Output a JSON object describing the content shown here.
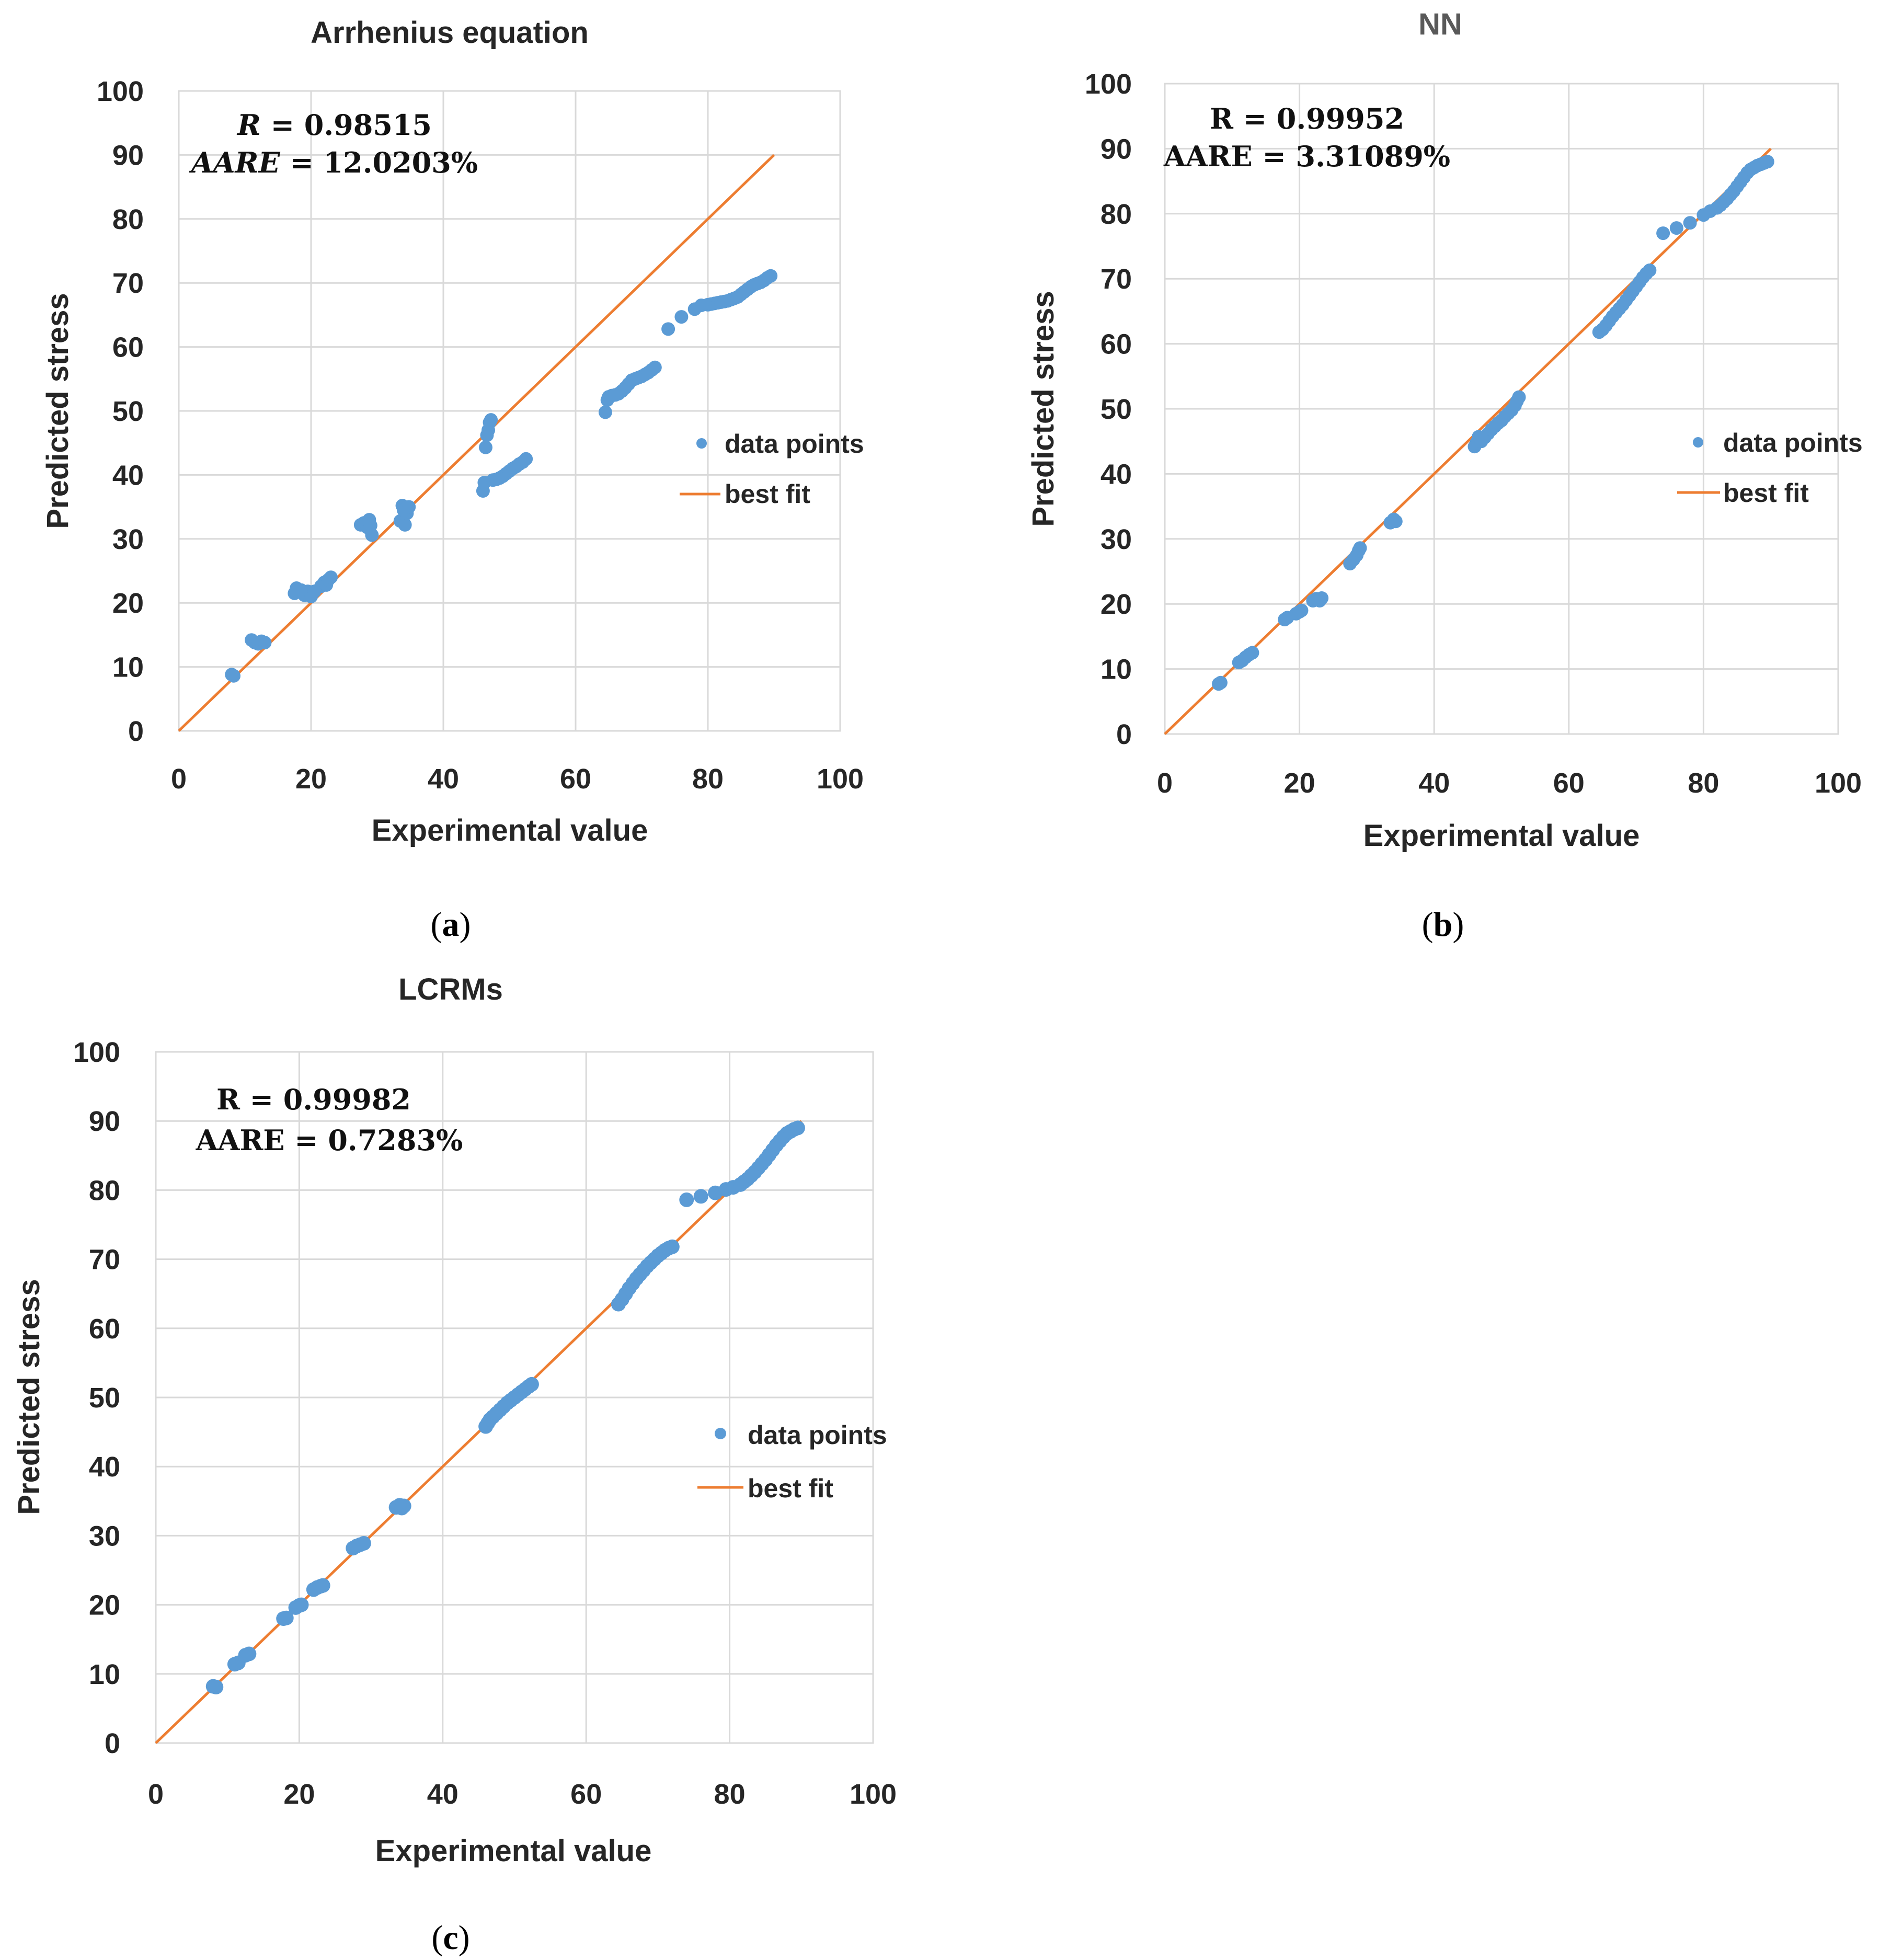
{
  "colors": {
    "points": "#5b9bd5",
    "fit": "#ed7d31"
  },
  "chart_data": [
    {
      "id": "a",
      "type": "scatter",
      "title": "Arrhenius  equation",
      "xlabel": "Experimental value",
      "ylabel": "Predicted stress",
      "xlim": [
        0,
        100
      ],
      "ylim": [
        0,
        100
      ],
      "xticks": [
        "0",
        "20",
        "40",
        "60",
        "80",
        "100"
      ],
      "yticks": [
        "0",
        "10",
        "20",
        "30",
        "40",
        "50",
        "60",
        "70",
        "80",
        "90",
        "100"
      ],
      "grid": true,
      "annotation": {
        "r_label": "R",
        "r_value": "= 0.98515",
        "aare_label": "AARE",
        "aare_value": "= 12.0203%"
      },
      "legend": {
        "points": "data points",
        "fit": "best fit"
      },
      "panel_open": "(",
      "panel_letter": "a",
      "panel_close": ")",
      "best_fit": {
        "x": [
          0,
          90
        ],
        "y": [
          0,
          90
        ]
      },
      "series": [
        {
          "name": "data points",
          "points": [
            [
              8,
              8.8
            ],
            [
              8.3,
              8.6
            ],
            [
              11,
              14.2
            ],
            [
              11.5,
              13.8
            ],
            [
              12,
              13.6
            ],
            [
              12.5,
              14
            ],
            [
              13,
              13.8
            ],
            [
              17.5,
              21.5
            ],
            [
              17.8,
              22.3
            ],
            [
              18,
              21.8
            ],
            [
              18.5,
              22
            ],
            [
              19,
              21.2
            ],
            [
              19.5,
              21.8
            ],
            [
              20,
              21
            ],
            [
              20.5,
              21.8
            ],
            [
              21.5,
              22.6
            ],
            [
              22,
              23.2
            ],
            [
              22.3,
              22.8
            ],
            [
              22.6,
              23.6
            ],
            [
              23,
              24
            ],
            [
              27.5,
              32.2
            ],
            [
              28,
              32.5
            ],
            [
              28.5,
              31.8
            ],
            [
              28.8,
              33
            ],
            [
              29,
              32.1
            ],
            [
              29.2,
              30.6
            ],
            [
              33.5,
              32.8
            ],
            [
              33.8,
              35.2
            ],
            [
              34,
              34.5
            ],
            [
              34.2,
              32.2
            ],
            [
              34.5,
              34
            ],
            [
              34.8,
              35
            ],
            [
              46,
              37.5
            ],
            [
              46.2,
              38.8
            ],
            [
              46.4,
              44.3
            ],
            [
              46.6,
              46.2
            ],
            [
              46.8,
              47
            ],
            [
              47,
              48.2
            ],
            [
              47.2,
              48.6
            ],
            [
              47.5,
              39.2
            ],
            [
              48,
              39.3
            ],
            [
              48.5,
              39.5
            ],
            [
              49,
              39.8
            ],
            [
              49.5,
              40.2
            ],
            [
              50,
              40.6
            ],
            [
              50.5,
              41
            ],
            [
              51,
              41.3
            ],
            [
              51.5,
              41.7
            ],
            [
              52,
              42
            ],
            [
              52.5,
              42.5
            ],
            [
              64.5,
              49.8
            ],
            [
              64.8,
              51.7
            ],
            [
              65,
              52.2
            ],
            [
              65.5,
              52.4
            ],
            [
              66,
              52.5
            ],
            [
              66.5,
              52.7
            ],
            [
              67,
              53.1
            ],
            [
              67.5,
              53.6
            ],
            [
              68,
              54.2
            ],
            [
              68.5,
              54.8
            ],
            [
              69,
              55
            ],
            [
              69.5,
              55.2
            ],
            [
              70,
              55.4
            ],
            [
              70.5,
              55.7
            ],
            [
              71,
              56
            ],
            [
              71.5,
              56.4
            ],
            [
              72,
              56.8
            ],
            [
              74,
              62.8
            ],
            [
              76,
              64.7
            ],
            [
              78,
              65.9
            ],
            [
              79,
              66.5
            ],
            [
              80,
              66.6
            ],
            [
              80.5,
              66.7
            ],
            [
              81,
              66.8
            ],
            [
              81.5,
              66.9
            ],
            [
              82,
              67
            ],
            [
              82.5,
              67.1
            ],
            [
              83,
              67.2
            ],
            [
              83.5,
              67.4
            ],
            [
              84,
              67.6
            ],
            [
              84.5,
              67.8
            ],
            [
              85,
              68.2
            ],
            [
              85.5,
              68.6
            ],
            [
              86,
              69
            ],
            [
              86.5,
              69.4
            ],
            [
              87,
              69.7
            ],
            [
              87.5,
              69.9
            ],
            [
              88,
              70.1
            ],
            [
              88.5,
              70.4
            ],
            [
              89,
              70.8
            ],
            [
              89.5,
              71.1
            ]
          ]
        }
      ]
    },
    {
      "id": "b",
      "type": "scatter",
      "title": "NN",
      "xlabel": "Experimental value",
      "ylabel": "Predicted stress",
      "xlim": [
        0,
        100
      ],
      "ylim": [
        0,
        100
      ],
      "xticks": [
        "0",
        "20",
        "40",
        "60",
        "80",
        "100"
      ],
      "yticks": [
        "0",
        "10",
        "20",
        "30",
        "40",
        "50",
        "60",
        "70",
        "80",
        "90",
        "100"
      ],
      "grid": true,
      "annotation": {
        "r_label": "R",
        "r_value": "= 0.99952",
        "aare_label": "AARE",
        "aare_value": "= 3.31089%"
      },
      "legend": {
        "points": "data points",
        "fit": "best fit"
      },
      "panel_open": "(",
      "panel_letter": "b",
      "panel_close": ")",
      "best_fit": {
        "x": [
          0,
          90
        ],
        "y": [
          0,
          90
        ]
      },
      "series": [
        {
          "name": "data points",
          "points": [
            [
              8,
              7.7
            ],
            [
              8.3,
              7.9
            ],
            [
              11,
              11
            ],
            [
              11.5,
              11.3
            ],
            [
              12,
              11.8
            ],
            [
              12.5,
              12.2
            ],
            [
              13,
              12.5
            ],
            [
              17.8,
              17.6
            ],
            [
              18.2,
              17.9
            ],
            [
              19.5,
              18.5
            ],
            [
              20,
              18.8
            ],
            [
              20.3,
              19
            ],
            [
              22,
              20.5
            ],
            [
              22.5,
              20.8
            ],
            [
              23,
              20.5
            ],
            [
              23.3,
              20.9
            ],
            [
              27.5,
              26.2
            ],
            [
              28,
              26.8
            ],
            [
              28.5,
              27.5
            ],
            [
              28.8,
              28.2
            ],
            [
              29,
              28.6
            ],
            [
              33.5,
              32.5
            ],
            [
              34,
              33
            ],
            [
              34.3,
              32.7
            ],
            [
              46,
              44.2
            ],
            [
              46.3,
              44.8
            ],
            [
              46.6,
              45.7
            ],
            [
              47,
              45
            ],
            [
              47.5,
              45.6
            ],
            [
              48,
              46.2
            ],
            [
              48.5,
              46.8
            ],
            [
              49,
              47.3
            ],
            [
              49.5,
              47.8
            ],
            [
              50,
              48.2
            ],
            [
              50.5,
              48.8
            ],
            [
              51,
              49.3
            ],
            [
              51.5,
              49.8
            ],
            [
              52,
              50.5
            ],
            [
              52.3,
              51.2
            ],
            [
              52.6,
              51.8
            ],
            [
              64.5,
              61.8
            ],
            [
              65,
              62.2
            ],
            [
              65.5,
              62.8
            ],
            [
              66,
              63.5
            ],
            [
              66.5,
              64.2
            ],
            [
              67,
              64.8
            ],
            [
              67.5,
              65.4
            ],
            [
              68,
              66
            ],
            [
              68.5,
              66.7
            ],
            [
              69,
              67.4
            ],
            [
              69.5,
              68.1
            ],
            [
              70,
              68.8
            ],
            [
              70.5,
              69.5
            ],
            [
              71,
              70.2
            ],
            [
              71.5,
              70.8
            ],
            [
              72,
              71.3
            ],
            [
              74,
              77
            ],
            [
              76,
              77.8
            ],
            [
              78,
              78.6
            ],
            [
              80,
              79.8
            ],
            [
              81,
              80.4
            ],
            [
              82,
              80.9
            ],
            [
              82.5,
              81.3
            ],
            [
              83,
              81.8
            ],
            [
              83.5,
              82.3
            ],
            [
              84,
              82.9
            ],
            [
              84.5,
              83.5
            ],
            [
              85,
              84.2
            ],
            [
              85.5,
              84.9
            ],
            [
              86,
              85.6
            ],
            [
              86.5,
              86.3
            ],
            [
              87,
              86.8
            ],
            [
              87.5,
              87.1
            ],
            [
              88,
              87.4
            ],
            [
              88.5,
              87.6
            ],
            [
              89,
              87.8
            ],
            [
              89.5,
              88
            ]
          ]
        }
      ]
    },
    {
      "id": "c",
      "type": "scatter",
      "title": "LCRMs",
      "xlabel": "Experimental value",
      "ylabel": "Predicted stress",
      "xlim": [
        0,
        100
      ],
      "ylim": [
        0,
        100
      ],
      "xticks": [
        "0",
        "20",
        "40",
        "60",
        "80",
        "100"
      ],
      "yticks": [
        "0",
        "10",
        "20",
        "30",
        "40",
        "50",
        "60",
        "70",
        "80",
        "90",
        "100"
      ],
      "grid": true,
      "annotation": {
        "r_label": "R",
        "r_value": "= 0.99982",
        "aare_label": "AARE",
        "aare_value": "= 0.7283%"
      },
      "legend": {
        "points": "data points",
        "fit": "best fit"
      },
      "panel_open": "(",
      "panel_letter": "c",
      "panel_close": ")",
      "best_fit": {
        "x": [
          0,
          90
        ],
        "y": [
          0,
          90
        ]
      },
      "series": [
        {
          "name": "data points",
          "points": [
            [
              8,
              8.2
            ],
            [
              8.4,
              8.1
            ],
            [
              11,
              11.4
            ],
            [
              11.5,
              11.6
            ],
            [
              12.5,
              12.7
            ],
            [
              13,
              12.9
            ],
            [
              17.8,
              18
            ],
            [
              18.2,
              18.1
            ],
            [
              19.5,
              19.6
            ],
            [
              20,
              19.9
            ],
            [
              20.3,
              20
            ],
            [
              22,
              22.2
            ],
            [
              22.5,
              22.5
            ],
            [
              23,
              22.7
            ],
            [
              23.3,
              22.8
            ],
            [
              27.5,
              28.2
            ],
            [
              28,
              28.5
            ],
            [
              28.5,
              28.7
            ],
            [
              29,
              28.9
            ],
            [
              33.5,
              34.1
            ],
            [
              34,
              34.4
            ],
            [
              34.3,
              34
            ],
            [
              34.6,
              34.3
            ],
            [
              46,
              45.8
            ],
            [
              46.3,
              46.3
            ],
            [
              46.6,
              46.8
            ],
            [
              47,
              47.2
            ],
            [
              47.5,
              47.7
            ],
            [
              48,
              48.2
            ],
            [
              48.5,
              48.7
            ],
            [
              49,
              49.2
            ],
            [
              49.5,
              49.6
            ],
            [
              50,
              50
            ],
            [
              50.5,
              50.4
            ],
            [
              51,
              50.8
            ],
            [
              51.5,
              51.2
            ],
            [
              52,
              51.6
            ],
            [
              52.4,
              51.9
            ],
            [
              64.5,
              63.5
            ],
            [
              65,
              64.2
            ],
            [
              65.5,
              65
            ],
            [
              66,
              65.8
            ],
            [
              66.5,
              66.5
            ],
            [
              67,
              67.2
            ],
            [
              67.5,
              67.8
            ],
            [
              68,
              68.4
            ],
            [
              68.5,
              69
            ],
            [
              69,
              69.5
            ],
            [
              69.5,
              70
            ],
            [
              70,
              70.5
            ],
            [
              70.5,
              70.9
            ],
            [
              71,
              71.3
            ],
            [
              71.5,
              71.6
            ],
            [
              72,
              71.8
            ],
            [
              74,
              78.6
            ],
            [
              76,
              79.1
            ],
            [
              78,
              79.6
            ],
            [
              79.5,
              80.1
            ],
            [
              80.5,
              80.4
            ],
            [
              81.5,
              80.8
            ],
            [
              82,
              81.2
            ],
            [
              82.5,
              81.6
            ],
            [
              83,
              82.1
            ],
            [
              83.5,
              82.6
            ],
            [
              84,
              83.2
            ],
            [
              84.5,
              83.8
            ],
            [
              85,
              84.4
            ],
            [
              85.5,
              85.1
            ],
            [
              86,
              85.8
            ],
            [
              86.5,
              86.5
            ],
            [
              87,
              87.1
            ],
            [
              87.5,
              87.7
            ],
            [
              88,
              88.2
            ],
            [
              88.5,
              88.5
            ],
            [
              89,
              88.8
            ],
            [
              89.5,
              89
            ]
          ]
        }
      ]
    }
  ]
}
